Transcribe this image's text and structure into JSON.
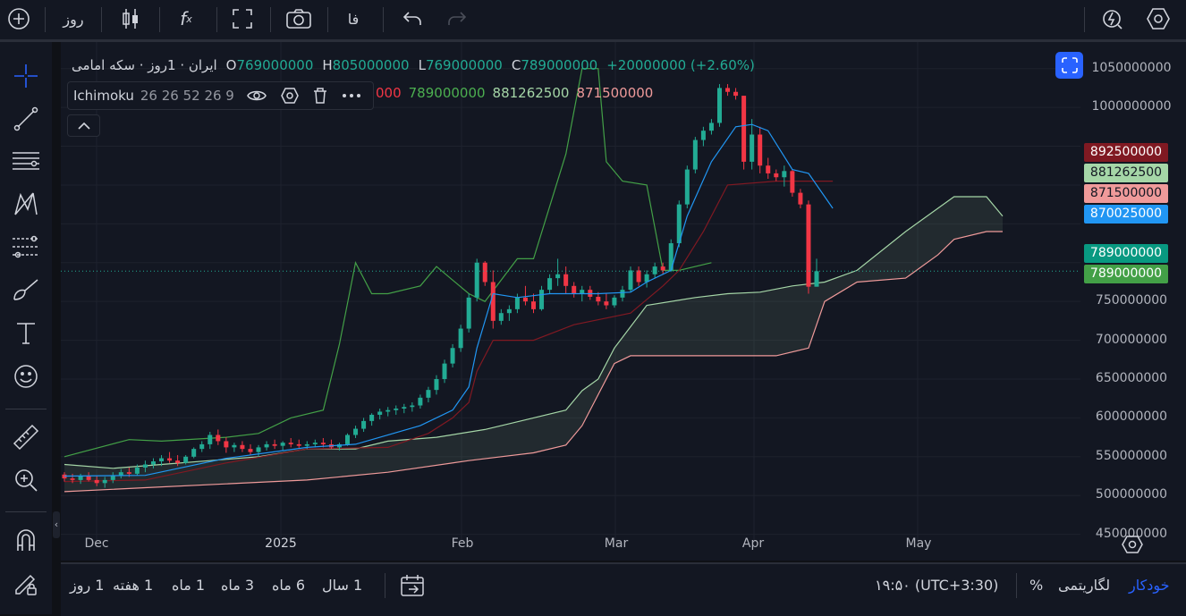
{
  "toolbar": {
    "interval_label": "روز",
    "language_label": "فا",
    "icons": [
      "plus-circle-icon",
      "candles-icon",
      "fx-icon",
      "fullscreen-icon",
      "camera-icon",
      "undo-icon",
      "redo-icon",
      "alert-icon",
      "settings-hex-icon"
    ]
  },
  "left_toolbar": {
    "icons": [
      "crosshair-icon",
      "trend-line-icon",
      "horizontal-lines-icon",
      "pattern-icon",
      "fib-icon",
      "brush-icon",
      "text-icon",
      "emoji-icon",
      "ruler-icon",
      "zoom-in-icon",
      "magnet-icon",
      "lock-pen-icon"
    ]
  },
  "legend": {
    "title": "ایران · 1روز · سکه امامی",
    "open_key": "O",
    "open": "769000000",
    "high_key": "H",
    "high": "805000000",
    "low_key": "L",
    "low": "769000000",
    "close_key": "C",
    "close": "789000000",
    "change": "+20000000 (+2.60%)"
  },
  "indicator": {
    "name": "Ichimoku",
    "params": "26 26 52 26 9",
    "values": [
      "000",
      "789000000",
      "881262500",
      "871500000"
    ],
    "value_colors": [
      "#f23645",
      "#4caf50",
      "#a5d6a7",
      "#ef9a9a"
    ]
  },
  "price_labels": [
    {
      "text": "892500000",
      "bg": "#801922",
      "fg": "#ffffff"
    },
    {
      "text": "881262500",
      "bg": "#a5d6a7",
      "fg": "#131722"
    },
    {
      "text": "871500000",
      "bg": "#ef9a9a",
      "fg": "#131722"
    },
    {
      "text": "870025000",
      "bg": "#2196f3",
      "fg": "#ffffff"
    },
    {
      "text": "789000000",
      "bg": "#089981",
      "fg": "#ffffff"
    },
    {
      "text": "789000000",
      "bg": "#43a047",
      "fg": "#ffffff"
    }
  ],
  "bottom": {
    "timeframes": [
      "1 روز",
      "1 هفته",
      "1 ماه",
      "3 ماه",
      "6 ماه",
      "1 سال"
    ],
    "time": "۱۹:۵۰ (UTC+3:30)",
    "percent": "%",
    "log": "لگاریتمی",
    "auto": "خودکار"
  },
  "chart_data": {
    "type": "candlestick",
    "title": "ایران · 1روز · سکه امامی",
    "x_ticks": [
      "Dec",
      "2025",
      "Feb",
      "Mar",
      "Apr",
      "May"
    ],
    "y_ticks": [
      1050000000,
      1000000000,
      950000000,
      900000000,
      850000000,
      800000000,
      750000000,
      700000000,
      650000000,
      600000000,
      550000000,
      500000000,
      450000000
    ],
    "y_tick_labels": [
      "1050000000",
      "1000000000",
      "",
      "",
      "",
      "",
      "750000000",
      "700000000",
      "650000000",
      "600000000",
      "550000000",
      "500000000",
      "450000000"
    ],
    "ylim": [
      430000000,
      1075000000
    ],
    "last_price": 789000000,
    "colors": {
      "up": "#22ab94",
      "down": "#f23645",
      "tenkan": "#2196f3",
      "kijun": "#801922",
      "chikou": "#43a047",
      "span_a": "#a5d6a7",
      "span_b": "#ef9a9a",
      "cloud": "rgba(165,214,167,0.10)"
    },
    "candles": [
      [
        527,
        530,
        518,
        522
      ],
      [
        522,
        528,
        516,
        520
      ],
      [
        520,
        528,
        515,
        525
      ],
      [
        525,
        530,
        518,
        520
      ],
      [
        520,
        525,
        512,
        516
      ],
      [
        516,
        524,
        510,
        520
      ],
      [
        520,
        530,
        516,
        526
      ],
      [
        526,
        534,
        522,
        530
      ],
      [
        530,
        536,
        524,
        528
      ],
      [
        528,
        540,
        526,
        536
      ],
      [
        536,
        545,
        530,
        540
      ],
      [
        540,
        548,
        535,
        544
      ],
      [
        544,
        552,
        538,
        548
      ],
      [
        548,
        556,
        542,
        545
      ],
      [
        545,
        552,
        538,
        542
      ],
      [
        542,
        552,
        540,
        550
      ],
      [
        550,
        562,
        548,
        560
      ],
      [
        560,
        570,
        556,
        566
      ],
      [
        566,
        582,
        560,
        578
      ],
      [
        578,
        585,
        565,
        570
      ],
      [
        570,
        575,
        555,
        562
      ],
      [
        562,
        568,
        556,
        565
      ],
      [
        565,
        570,
        556,
        560
      ],
      [
        560,
        566,
        552,
        556
      ],
      [
        556,
        565,
        550,
        562
      ],
      [
        562,
        570,
        558,
        566
      ],
      [
        566,
        572,
        560,
        564
      ],
      [
        564,
        570,
        558,
        568
      ],
      [
        568,
        574,
        562,
        566
      ],
      [
        566,
        572,
        560,
        564
      ],
      [
        564,
        570,
        560,
        566
      ],
      [
        566,
        572,
        562,
        568
      ],
      [
        568,
        574,
        562,
        566
      ],
      [
        566,
        572,
        560,
        562
      ],
      [
        562,
        568,
        558,
        566
      ],
      [
        566,
        580,
        564,
        578
      ],
      [
        578,
        590,
        574,
        586
      ],
      [
        586,
        600,
        582,
        596
      ],
      [
        596,
        606,
        590,
        604
      ],
      [
        604,
        612,
        598,
        608
      ],
      [
        608,
        614,
        602,
        610
      ],
      [
        610,
        616,
        604,
        612
      ],
      [
        612,
        618,
        606,
        614
      ],
      [
        614,
        620,
        608,
        616
      ],
      [
        616,
        630,
        612,
        626
      ],
      [
        626,
        640,
        620,
        636
      ],
      [
        636,
        655,
        630,
        650
      ],
      [
        650,
        675,
        645,
        670
      ],
      [
        670,
        695,
        665,
        690
      ],
      [
        690,
        720,
        685,
        715
      ],
      [
        715,
        760,
        710,
        755
      ],
      [
        755,
        805,
        750,
        800
      ],
      [
        800,
        802,
        770,
        775
      ],
      [
        775,
        790,
        715,
        725
      ],
      [
        725,
        740,
        720,
        735
      ],
      [
        735,
        745,
        725,
        740
      ],
      [
        740,
        760,
        735,
        755
      ],
      [
        755,
        770,
        745,
        750
      ],
      [
        750,
        760,
        735,
        740
      ],
      [
        740,
        770,
        738,
        765
      ],
      [
        765,
        785,
        760,
        780
      ],
      [
        780,
        805,
        770,
        785
      ],
      [
        785,
        795,
        760,
        770
      ],
      [
        770,
        775,
        755,
        760
      ],
      [
        760,
        770,
        750,
        765
      ],
      [
        765,
        770,
        752,
        756
      ],
      [
        756,
        762,
        745,
        750
      ],
      [
        750,
        760,
        740,
        745
      ],
      [
        745,
        758,
        742,
        755
      ],
      [
        755,
        770,
        750,
        765
      ],
      [
        765,
        795,
        762,
        790
      ],
      [
        790,
        795,
        770,
        775
      ],
      [
        775,
        790,
        768,
        785
      ],
      [
        785,
        800,
        780,
        795
      ],
      [
        795,
        800,
        785,
        790
      ],
      [
        790,
        830,
        788,
        825
      ],
      [
        825,
        880,
        820,
        875
      ],
      [
        875,
        925,
        870,
        920
      ],
      [
        920,
        962,
        915,
        958
      ],
      [
        958,
        975,
        950,
        970
      ],
      [
        970,
        985,
        965,
        980
      ],
      [
        980,
        1030,
        975,
        1025
      ],
      [
        1025,
        1030,
        1015,
        1020
      ],
      [
        1020,
        1025,
        1010,
        1015
      ],
      [
        1015,
        1015,
        920,
        930
      ],
      [
        930,
        985,
        920,
        965
      ],
      [
        965,
        975,
        915,
        925
      ],
      [
        925,
        935,
        908,
        915
      ],
      [
        915,
        920,
        905,
        910
      ],
      [
        910,
        925,
        898,
        918
      ],
      [
        918,
        920,
        885,
        890
      ],
      [
        890,
        895,
        870,
        875
      ],
      [
        875,
        880,
        760,
        769
      ],
      [
        769,
        805,
        769,
        789
      ]
    ],
    "tenkan": [
      [
        0,
        525
      ],
      [
        10,
        526
      ],
      [
        20,
        548
      ],
      [
        30,
        562
      ],
      [
        36,
        566
      ],
      [
        44,
        590
      ],
      [
        48,
        610
      ],
      [
        50,
        640
      ],
      [
        51,
        690
      ],
      [
        53,
        760
      ],
      [
        56,
        755
      ],
      [
        60,
        760
      ],
      [
        66,
        760
      ],
      [
        70,
        762
      ],
      [
        72,
        775
      ],
      [
        75,
        790
      ],
      [
        77,
        860
      ],
      [
        80,
        930
      ],
      [
        83,
        975
      ],
      [
        85,
        978
      ],
      [
        87,
        970
      ],
      [
        90,
        920
      ],
      [
        92,
        915
      ],
      [
        95,
        870
      ]
    ],
    "kijun": [
      [
        0,
        518
      ],
      [
        10,
        520
      ],
      [
        20,
        542
      ],
      [
        30,
        560
      ],
      [
        40,
        562
      ],
      [
        45,
        580
      ],
      [
        48,
        600
      ],
      [
        50,
        620
      ],
      [
        51,
        660
      ],
      [
        53,
        700
      ],
      [
        58,
        700
      ],
      [
        63,
        720
      ],
      [
        70,
        735
      ],
      [
        74,
        770
      ],
      [
        76,
        790
      ],
      [
        79,
        840
      ],
      [
        82,
        900
      ],
      [
        88,
        905
      ],
      [
        95,
        905
      ]
    ],
    "chikou": [
      [
        0,
        550
      ],
      [
        8,
        572
      ],
      [
        12,
        570
      ],
      [
        20,
        575
      ],
      [
        24,
        580
      ],
      [
        28,
        600
      ],
      [
        32,
        610
      ],
      [
        34,
        695
      ],
      [
        36,
        800
      ],
      [
        38,
        760
      ],
      [
        40,
        760
      ],
      [
        44,
        770
      ],
      [
        46,
        795
      ],
      [
        50,
        760
      ],
      [
        52,
        750
      ],
      [
        56,
        805
      ],
      [
        58,
        805
      ],
      [
        62,
        940
      ],
      [
        64,
        1050
      ],
      [
        66,
        1050
      ],
      [
        67,
        930
      ],
      [
        69,
        905
      ],
      [
        72,
        900
      ],
      [
        74,
        790
      ],
      [
        76,
        790
      ],
      [
        80,
        800
      ]
    ],
    "span_a": [
      [
        0,
        540
      ],
      [
        6,
        535
      ],
      [
        12,
        540
      ],
      [
        18,
        545
      ],
      [
        24,
        550
      ],
      [
        30,
        560
      ],
      [
        36,
        560
      ],
      [
        40,
        570
      ],
      [
        46,
        575
      ],
      [
        52,
        585
      ],
      [
        58,
        600
      ],
      [
        62,
        610
      ],
      [
        64,
        635
      ],
      [
        66,
        650
      ],
      [
        68,
        690
      ],
      [
        72,
        745
      ],
      [
        78,
        755
      ],
      [
        82,
        760
      ],
      [
        86,
        762
      ],
      [
        90,
        770
      ],
      [
        94,
        775
      ],
      [
        98,
        790
      ],
      [
        104,
        840
      ],
      [
        108,
        870
      ],
      [
        110,
        885
      ],
      [
        114,
        885
      ],
      [
        116,
        860
      ]
    ],
    "span_b": [
      [
        0,
        505
      ],
      [
        10,
        510
      ],
      [
        20,
        515
      ],
      [
        30,
        520
      ],
      [
        40,
        530
      ],
      [
        50,
        545
      ],
      [
        58,
        555
      ],
      [
        62,
        565
      ],
      [
        64,
        590
      ],
      [
        66,
        630
      ],
      [
        68,
        670
      ],
      [
        70,
        680
      ],
      [
        76,
        680
      ],
      [
        80,
        680
      ],
      [
        88,
        680
      ],
      [
        92,
        690
      ],
      [
        94,
        750
      ],
      [
        98,
        775
      ],
      [
        104,
        780
      ],
      [
        108,
        810
      ],
      [
        110,
        830
      ],
      [
        114,
        840
      ],
      [
        116,
        840
      ]
    ]
  }
}
